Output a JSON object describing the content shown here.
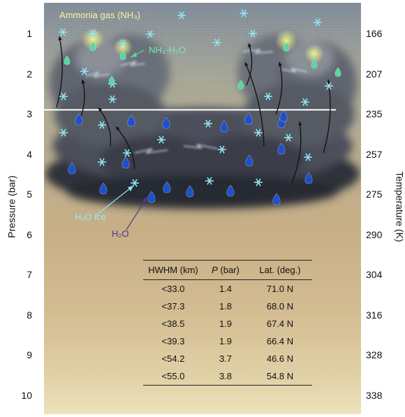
{
  "labels": {
    "ammonia_gas": "Ammonia gas (NH₃)",
    "nh3_h2o": "NH₃-H₂O",
    "h2o_ice": "H₂O ice",
    "h2o": "H₂O"
  },
  "axes": {
    "left_title": "Pressure (bar)",
    "right_title": "Temperature (K)",
    "pressure_ticks": [
      "1",
      "2",
      "3",
      "4",
      "5",
      "6",
      "7",
      "8",
      "9",
      "10"
    ],
    "temperature_ticks": [
      "166",
      "207",
      "235",
      "257",
      "275",
      "290",
      "304",
      "316",
      "328",
      "338"
    ]
  },
  "horizontal_line_pressure_bar": 2.9,
  "table": {
    "headers": [
      "HWHM (km)",
      "P (bar)",
      "Lat. (deg.)"
    ],
    "rows": [
      [
        "<33.0",
        "1.4",
        "71.0 N"
      ],
      [
        "<37.3",
        "1.8",
        "68.0 N"
      ],
      [
        "<38.5",
        "1.9",
        "67.4 N"
      ],
      [
        "<39.3",
        "1.9",
        "66.4 N"
      ],
      [
        "<54.2",
        "3.7",
        "46.6 N"
      ],
      [
        "<55.0",
        "3.8",
        "54.8 N"
      ]
    ]
  },
  "colors": {
    "ice": "#8fe3f2",
    "water_drop": "#1f4fc9",
    "nh3_drop": "#55d8a0",
    "ammonia_label": "#f4f5a3",
    "cloud_dark": "#2b2f3a"
  }
}
